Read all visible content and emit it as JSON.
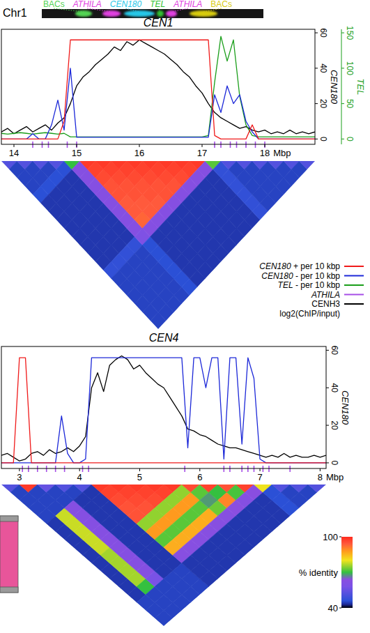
{
  "header": {
    "label": "Chr1",
    "bands": [
      {
        "text": "BACs",
        "color": "#52d452"
      },
      {
        "text": "ATHILA",
        "color": "#e040e0"
      },
      {
        "text": "CEN180",
        "color": "#28c8e8"
      },
      {
        "text": "TEL",
        "color": "#30c030"
      },
      {
        "text": "ATHILA",
        "color": "#e040e0"
      },
      {
        "text": "BACs",
        "color": "#d8cc10"
      }
    ]
  },
  "chart_data": [
    {
      "type": "line",
      "title": "CEN1",
      "xlabel": "Mbp",
      "ylabel": "CEN180",
      "y2label": "TEL",
      "legend": "right",
      "x": [
        13.8,
        13.9,
        14,
        14.1,
        14.2,
        14.3,
        14.4,
        14.5,
        14.6,
        14.7,
        14.8,
        14.9,
        15,
        15.1,
        15.2,
        15.3,
        15.4,
        15.5,
        15.6,
        15.7,
        15.8,
        15.9,
        16,
        16.1,
        16.2,
        16.3,
        16.4,
        16.5,
        16.6,
        16.7,
        16.8,
        16.9,
        17,
        17.1,
        17.2,
        17.3,
        17.4,
        17.5,
        17.6,
        17.7,
        17.8,
        17.9,
        18,
        18.1,
        18.2,
        18.3,
        18.4,
        18.5,
        18.6,
        18.7,
        18.8
      ],
      "xlim": [
        13.8,
        18.8
      ],
      "xticks": [
        14,
        15,
        16,
        17,
        18
      ],
      "ylim": [
        -3,
        62
      ],
      "yticks": [
        0,
        20,
        40,
        60
      ],
      "y2lim": [
        -7.5,
        155
      ],
      "y2ticks": [
        0,
        50,
        100,
        150
      ],
      "series": [
        {
          "name": "CEN180 + per 10 kbp",
          "color": "#f01a1a",
          "values": [
            0,
            0,
            0,
            0,
            0,
            0,
            0,
            0,
            0,
            0,
            10,
            56,
            56,
            56,
            56,
            56,
            56,
            56,
            56,
            56,
            56,
            56,
            56,
            56,
            56,
            56,
            56,
            56,
            56,
            56,
            56,
            56,
            56,
            56,
            2,
            0,
            0,
            0,
            0,
            0,
            8,
            0,
            0,
            0,
            0,
            0,
            0,
            0,
            0,
            0,
            0
          ]
        },
        {
          "name": "CEN180 - per 10 kbp",
          "color": "#1c28d8",
          "values": [
            0,
            0,
            0,
            0,
            0,
            3,
            0,
            0,
            8,
            22,
            5,
            40,
            1,
            1,
            1,
            1,
            1,
            1,
            1,
            1,
            1,
            1,
            1,
            1,
            1,
            1,
            1,
            1,
            1,
            1,
            1,
            1,
            1,
            1,
            25,
            15,
            30,
            20,
            25,
            10,
            4,
            0,
            0,
            0,
            0,
            0,
            0,
            0,
            0,
            0,
            0
          ]
        },
        {
          "name": "TEL - per 10 kbp",
          "color": "#1a9e1a",
          "axis": "y2",
          "values": [
            8,
            7,
            8,
            9,
            8,
            7,
            8,
            9,
            8,
            7,
            8,
            3,
            3,
            3,
            3,
            3,
            3,
            3,
            3,
            3,
            3,
            3,
            3,
            3,
            3,
            3,
            3,
            3,
            3,
            3,
            3,
            3,
            3,
            5,
            80,
            145,
            110,
            140,
            60,
            20,
            5,
            3,
            3,
            3,
            3,
            3,
            3,
            3,
            3,
            3,
            3
          ]
        },
        {
          "name": "ATHILA",
          "type": "event",
          "color": "#a64ee6",
          "x": [
            14.3,
            14.45,
            14.55,
            14.85,
            15,
            17.2,
            17.3,
            17.45,
            17.55,
            17.7,
            17.85,
            18
          ]
        },
        {
          "name": "CENH3",
          "label_note": "log2(ChIP/input)",
          "color": "#000000",
          "values": [
            4,
            6,
            3,
            5,
            7,
            4,
            6,
            8,
            5,
            9,
            12,
            20,
            30,
            35,
            38,
            42,
            45,
            48,
            52,
            50,
            55,
            53,
            56,
            54,
            52,
            50,
            48,
            45,
            42,
            38,
            35,
            30,
            26,
            20,
            15,
            12,
            10,
            8,
            6,
            7,
            5,
            4,
            5,
            3,
            4,
            3,
            5,
            3,
            4,
            3,
            4
          ]
        }
      ],
      "heatmap": {
        "bins": [
          13.8,
          14.05,
          14.3,
          14.55,
          14.8,
          15.05,
          15.3,
          15.55,
          15.8,
          16.05,
          16.3,
          16.55,
          16.8,
          17.05,
          17.3,
          17.55,
          17.8,
          18.05,
          18.3,
          18.55,
          18.8
        ],
        "cells": [
          [
            52,
            45,
            45,
            45,
            46,
            44,
            44,
            44,
            44,
            44,
            44,
            44,
            44,
            47,
            45,
            45,
            45,
            45,
            45,
            45
          ],
          [
            52,
            45,
            45,
            46,
            44,
            44,
            44,
            44,
            44,
            44,
            44,
            44,
            47,
            45,
            45,
            45,
            45,
            45,
            45
          ],
          [
            52,
            45,
            46,
            44,
            44,
            44,
            44,
            44,
            44,
            44,
            44,
            47,
            45,
            45,
            45,
            45,
            45,
            45
          ],
          [
            52,
            46,
            44,
            44,
            44,
            44,
            44,
            44,
            44,
            44,
            47,
            45,
            45,
            45,
            45,
            45,
            45
          ],
          [
            70,
            62,
            62,
            62,
            62,
            62,
            62,
            62,
            62,
            60,
            46,
            46,
            46,
            46,
            46,
            46
          ],
          [
            98,
            97,
            96,
            95,
            95,
            94,
            94,
            93,
            62,
            44,
            44,
            44,
            44,
            44,
            44
          ],
          [
            98,
            97,
            96,
            95,
            95,
            94,
            94,
            62,
            44,
            44,
            44,
            44,
            44,
            44
          ],
          [
            98,
            97,
            96,
            95,
            95,
            94,
            62,
            44,
            44,
            44,
            44,
            44,
            44
          ],
          [
            98,
            97,
            96,
            95,
            95,
            62,
            44,
            44,
            44,
            44,
            44,
            44
          ],
          [
            98,
            97,
            96,
            95,
            62,
            44,
            44,
            44,
            44,
            44,
            44
          ],
          [
            98,
            97,
            96,
            62,
            44,
            44,
            44,
            44,
            44,
            44
          ],
          [
            98,
            97,
            62,
            44,
            44,
            44,
            44,
            44,
            44
          ],
          [
            98,
            62,
            44,
            44,
            44,
            44,
            44,
            44
          ],
          [
            72,
            47,
            47,
            47,
            47,
            47,
            47
          ],
          [
            52,
            45,
            45,
            45,
            45,
            45
          ],
          [
            52,
            45,
            45,
            45,
            45
          ],
          [
            52,
            45,
            45,
            45
          ],
          [
            52,
            45,
            45
          ],
          [
            52,
            45
          ],
          [
            52
          ]
        ]
      }
    },
    {
      "type": "line",
      "title": "CEN4",
      "xlabel": "Mbp",
      "ylabel": "CEN180",
      "x": [
        2.7,
        2.8,
        2.9,
        3,
        3.1,
        3.2,
        3.3,
        3.4,
        3.5,
        3.6,
        3.7,
        3.8,
        3.9,
        4,
        4.1,
        4.2,
        4.3,
        4.4,
        4.5,
        4.6,
        4.7,
        4.8,
        4.9,
        5,
        5.1,
        5.2,
        5.3,
        5.4,
        5.5,
        5.6,
        5.7,
        5.8,
        5.9,
        6,
        6.1,
        6.2,
        6.3,
        6.4,
        6.5,
        6.6,
        6.7,
        6.8,
        6.9,
        7,
        7.1,
        7.2,
        7.3,
        7.4,
        7.5,
        7.6,
        7.7,
        7.8,
        7.9,
        8,
        8.1
      ],
      "xlim": [
        2.7,
        8.1
      ],
      "xticks": [
        3,
        4,
        5,
        6,
        7,
        8
      ],
      "ylim": [
        -3,
        62
      ],
      "yticks": [
        0,
        20,
        40,
        60
      ],
      "series": [
        {
          "color": "#f01a1a",
          "values": [
            0,
            0,
            0,
            56,
            56,
            0,
            0,
            0,
            0,
            0,
            0,
            0,
            0,
            0,
            0,
            0,
            0,
            0,
            0,
            0,
            0,
            0,
            0,
            0,
            0,
            0,
            0,
            0,
            0,
            0,
            0,
            0,
            0,
            0,
            0,
            0,
            0,
            0,
            0,
            0,
            0,
            0,
            0,
            0,
            0,
            0,
            0,
            0,
            0,
            0,
            0,
            0,
            0,
            0,
            0
          ]
        },
        {
          "color": "#1c28d8",
          "values": [
            0,
            0,
            0,
            0,
            0,
            0,
            0,
            0,
            0,
            0,
            25,
            5,
            0,
            0,
            2,
            56,
            56,
            56,
            56,
            56,
            56,
            56,
            56,
            56,
            56,
            56,
            56,
            56,
            56,
            56,
            56,
            8,
            56,
            56,
            40,
            56,
            56,
            2,
            56,
            56,
            10,
            56,
            45,
            2,
            0,
            0,
            0,
            0,
            0,
            0,
            0,
            0,
            0,
            0,
            0
          ]
        },
        {
          "type": "event",
          "color": "#a64ee6",
          "x": [
            3.05,
            3.15,
            3.3,
            3.45,
            3.6,
            3.75,
            4.05,
            4.15,
            5.75,
            6.4,
            6.5,
            6.7,
            6.8,
            6.9,
            7.05,
            7.15,
            7.5
          ]
        },
        {
          "color": "#000000",
          "values": [
            4,
            5,
            3,
            1,
            2,
            5,
            6,
            4,
            7,
            5,
            6,
            8,
            6,
            9,
            14,
            40,
            48,
            38,
            52,
            55,
            57,
            55,
            50,
            52,
            48,
            45,
            42,
            40,
            35,
            30,
            25,
            18,
            17,
            15,
            14,
            12,
            10,
            9,
            8,
            8,
            7,
            6,
            5,
            4,
            3,
            4,
            3,
            5,
            3,
            4,
            3,
            3,
            4,
            3,
            4
          ]
        }
      ],
      "heatmap": {
        "bins": [
          2.7,
          3,
          3.3,
          3.6,
          3.9,
          4.2,
          4.5,
          4.8,
          5.1,
          5.4,
          5.7,
          6,
          6.3,
          6.6,
          6.9,
          7.2,
          7.5,
          7.8,
          8.1
        ],
        "cells": [
          [
            52,
            45,
            45,
            45,
            45,
            44,
            44,
            44,
            44,
            44,
            44,
            44,
            44,
            44,
            44,
            45,
            45,
            45
          ],
          [
            98,
            45,
            45,
            45,
            78,
            78,
            78,
            78,
            78,
            76,
            76,
            76,
            76,
            70,
            45,
            45,
            45
          ],
          [
            55,
            45,
            45,
            62,
            62,
            62,
            62,
            62,
            62,
            62,
            62,
            62,
            58,
            45,
            45,
            45
          ],
          [
            52,
            45,
            44,
            44,
            44,
            44,
            44,
            44,
            44,
            44,
            44,
            44,
            45,
            45,
            45
          ],
          [
            52,
            44,
            44,
            44,
            44,
            44,
            44,
            44,
            44,
            44,
            44,
            45,
            45,
            45
          ],
          [
            98,
            97,
            96,
            95,
            95,
            75,
            88,
            72,
            86,
            63,
            44,
            44,
            44
          ],
          [
            98,
            97,
            96,
            95,
            75,
            88,
            72,
            86,
            63,
            44,
            44,
            44
          ],
          [
            98,
            97,
            96,
            75,
            88,
            72,
            86,
            63,
            44,
            44,
            44
          ],
          [
            98,
            97,
            75,
            88,
            72,
            86,
            63,
            44,
            44,
            44
          ],
          [
            98,
            75,
            88,
            72,
            86,
            63,
            44,
            44,
            44
          ],
          [
            96,
            72,
            68,
            73,
            63,
            44,
            44,
            44
          ],
          [
            97,
            70,
            90,
            64,
            44,
            44,
            44
          ],
          [
            95,
            71,
            62,
            44,
            44,
            44
          ],
          [
            97,
            64,
            44,
            44,
            44
          ],
          [
            80,
            46,
            46,
            46
          ],
          [
            52,
            45,
            45
          ],
          [
            52,
            45
          ],
          [
            52
          ]
        ]
      }
    }
  ],
  "colorbar": {
    "title": "% identity",
    "range": [
      40,
      100
    ],
    "ticks": [
      100,
      40
    ]
  }
}
